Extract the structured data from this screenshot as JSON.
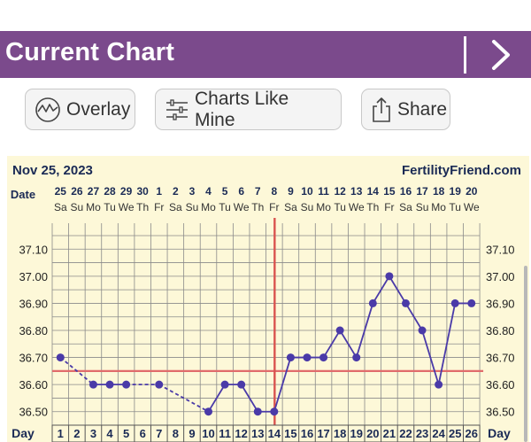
{
  "header": {
    "title": "Current Chart"
  },
  "toolbar": {
    "overlay_label": "Overlay",
    "charts_like_mine_label": "Charts Like Mine",
    "share_label": "Share"
  },
  "chart_data": {
    "type": "line",
    "date": "Nov 25, 2023",
    "brand": "FertilityFriend.com",
    "date_row_label": "Date",
    "day_row_label": "Day",
    "dates": [
      "25",
      "26",
      "27",
      "28",
      "29",
      "30",
      "1",
      "2",
      "3",
      "4",
      "5",
      "6",
      "7",
      "8",
      "9",
      "10",
      "11",
      "12",
      "13",
      "14",
      "15",
      "16",
      "17",
      "18",
      "19",
      "20"
    ],
    "weekdays": [
      "Sa",
      "Su",
      "Mo",
      "Tu",
      "We",
      "Th",
      "Fr",
      "Sa",
      "Su",
      "Mo",
      "Tu",
      "We",
      "Th",
      "Fr",
      "Sa",
      "Su",
      "Mo",
      "Tu",
      "We",
      "Th",
      "Fr",
      "Sa",
      "Su",
      "Mo",
      "Tu",
      "We"
    ],
    "days": [
      1,
      2,
      3,
      4,
      5,
      6,
      7,
      8,
      9,
      10,
      11,
      12,
      13,
      14,
      15,
      16,
      17,
      18,
      19,
      20,
      21,
      22,
      23,
      24,
      25,
      26
    ],
    "y_ticks": [
      "37.10",
      "37.00",
      "36.90",
      "36.80",
      "36.70",
      "36.60",
      "36.50"
    ],
    "ylim": [
      36.45,
      37.15
    ],
    "temperatures": [
      {
        "day": 1,
        "value": 36.7
      },
      {
        "day": 3,
        "value": 36.6
      },
      {
        "day": 4,
        "value": 36.6
      },
      {
        "day": 5,
        "value": 36.6
      },
      {
        "day": 7,
        "value": 36.6
      },
      {
        "day": 10,
        "value": 36.5
      },
      {
        "day": 11,
        "value": 36.6
      },
      {
        "day": 12,
        "value": 36.6
      },
      {
        "day": 13,
        "value": 36.5
      },
      {
        "day": 14,
        "value": 36.5
      },
      {
        "day": 15,
        "value": 36.7
      },
      {
        "day": 16,
        "value": 36.7
      },
      {
        "day": 17,
        "value": 36.7
      },
      {
        "day": 18,
        "value": 36.8
      },
      {
        "day": 19,
        "value": 36.7
      },
      {
        "day": 20,
        "value": 36.9
      },
      {
        "day": 21,
        "value": 37.0
      },
      {
        "day": 22,
        "value": 36.9
      },
      {
        "day": 23,
        "value": 36.8
      },
      {
        "day": 24,
        "value": 36.6
      },
      {
        "day": 25,
        "value": 36.9
      },
      {
        "day": 26,
        "value": 36.9
      }
    ],
    "coverline_value": 36.65,
    "ovulation_day": 14,
    "colors": {
      "line": "#4a3aa8",
      "point": "#4a3aa8",
      "coverline": "#e06b6b",
      "ovulation": "#d9534f",
      "background": "#fdf8d8",
      "grid": "#8a8a8a"
    }
  }
}
